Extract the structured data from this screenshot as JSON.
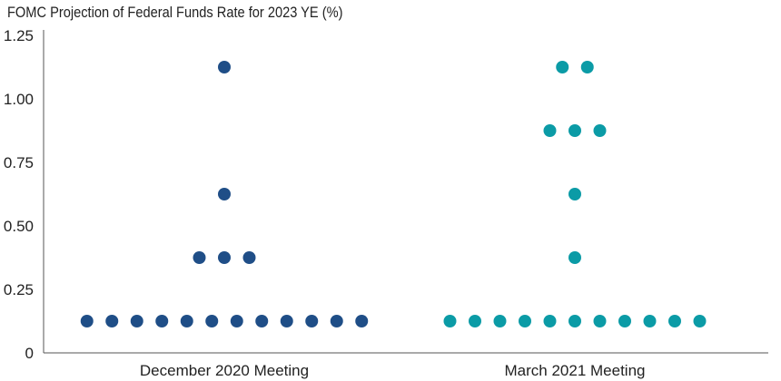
{
  "chart_data": {
    "type": "scatter",
    "subtype": "dot-plot",
    "title": "FOMC Projection of Federal Funds Rate for 2023 YE (%)",
    "xlabel": "",
    "ylabel": "",
    "ylim": [
      0,
      1.25
    ],
    "yticks": [
      "0",
      "0.25",
      "0.50",
      "0.75",
      "1.00",
      "1.25"
    ],
    "yticks_values": [
      0,
      0.25,
      0.5,
      0.75,
      1.0,
      1.25
    ],
    "grid": false,
    "legend": "none",
    "categories": [
      "December 2020 Meeting",
      "March 2021 Meeting"
    ],
    "series": [
      {
        "color": "#1f4e87",
        "counts": [
          {
            "y": 0.125,
            "n": 12
          },
          {
            "y": 0.375,
            "n": 3
          },
          {
            "y": 0.625,
            "n": 1
          },
          {
            "y": 1.125,
            "n": 1
          }
        ]
      },
      {
        "color": "#0b9ba6",
        "counts": [
          {
            "y": 0.125,
            "n": 11
          },
          {
            "y": 0.375,
            "n": 1
          },
          {
            "y": 0.625,
            "n": 1
          },
          {
            "y": 0.875,
            "n": 3
          },
          {
            "y": 1.125,
            "n": 2
          }
        ]
      }
    ]
  }
}
